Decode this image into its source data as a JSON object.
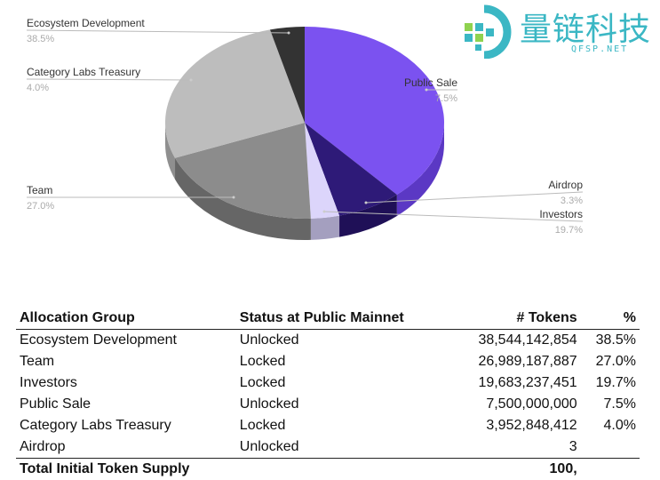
{
  "chart_data": {
    "type": "pie",
    "style": "3d",
    "slices": [
      {
        "label": "Ecosystem Development",
        "value": 38.5,
        "pct_label": "38.5%",
        "color": "#7b52f0",
        "side": "#5b38c4"
      },
      {
        "label": "Public Sale",
        "value": 7.5,
        "pct_label": "7.5%",
        "color": "#2e1a78",
        "side": "#1f1057"
      },
      {
        "label": "Airdrop",
        "value": 3.3,
        "pct_label": "3.3%",
        "color": "#dcd5fb",
        "side": "#a49fbf"
      },
      {
        "label": "Investors",
        "value": 19.7,
        "pct_label": "19.7%",
        "color": "#8c8c8c",
        "side": "#666666"
      },
      {
        "label": "Team",
        "value": 27.0,
        "pct_label": "27.0%",
        "color": "#bdbdbd",
        "side": "#8f8f8f"
      },
      {
        "label": "Category Labs Treasury",
        "value": 4.0,
        "pct_label": "4.0%",
        "color": "#333333",
        "side": "#222222"
      }
    ]
  },
  "table": {
    "headers": [
      "Allocation Group",
      "Status at Public Mainnet",
      "# Tokens",
      "%"
    ],
    "rows": [
      [
        "Ecosystem Development",
        "Unlocked",
        "38,544,142,854",
        "38.5%"
      ],
      [
        "Team",
        "Locked",
        "26,989,187,887",
        "27.0%"
      ],
      [
        "Investors",
        "Locked",
        "19,683,237,451",
        "19.7%"
      ],
      [
        "Public Sale",
        "Unlocked",
        "7,500,000,000",
        "7.5%"
      ],
      [
        "Category Labs Treasury",
        "Locked",
        "3,952,848,412",
        "4.0%"
      ],
      [
        "Airdrop",
        "Unlocked",
        "3",
        ""
      ]
    ],
    "total": [
      "Total Initial Token Supply",
      "",
      "100,",
      ""
    ]
  },
  "watermark": {
    "text": "量链科技",
    "sub": "QFSP.NET",
    "color": "#3bb7c4"
  }
}
